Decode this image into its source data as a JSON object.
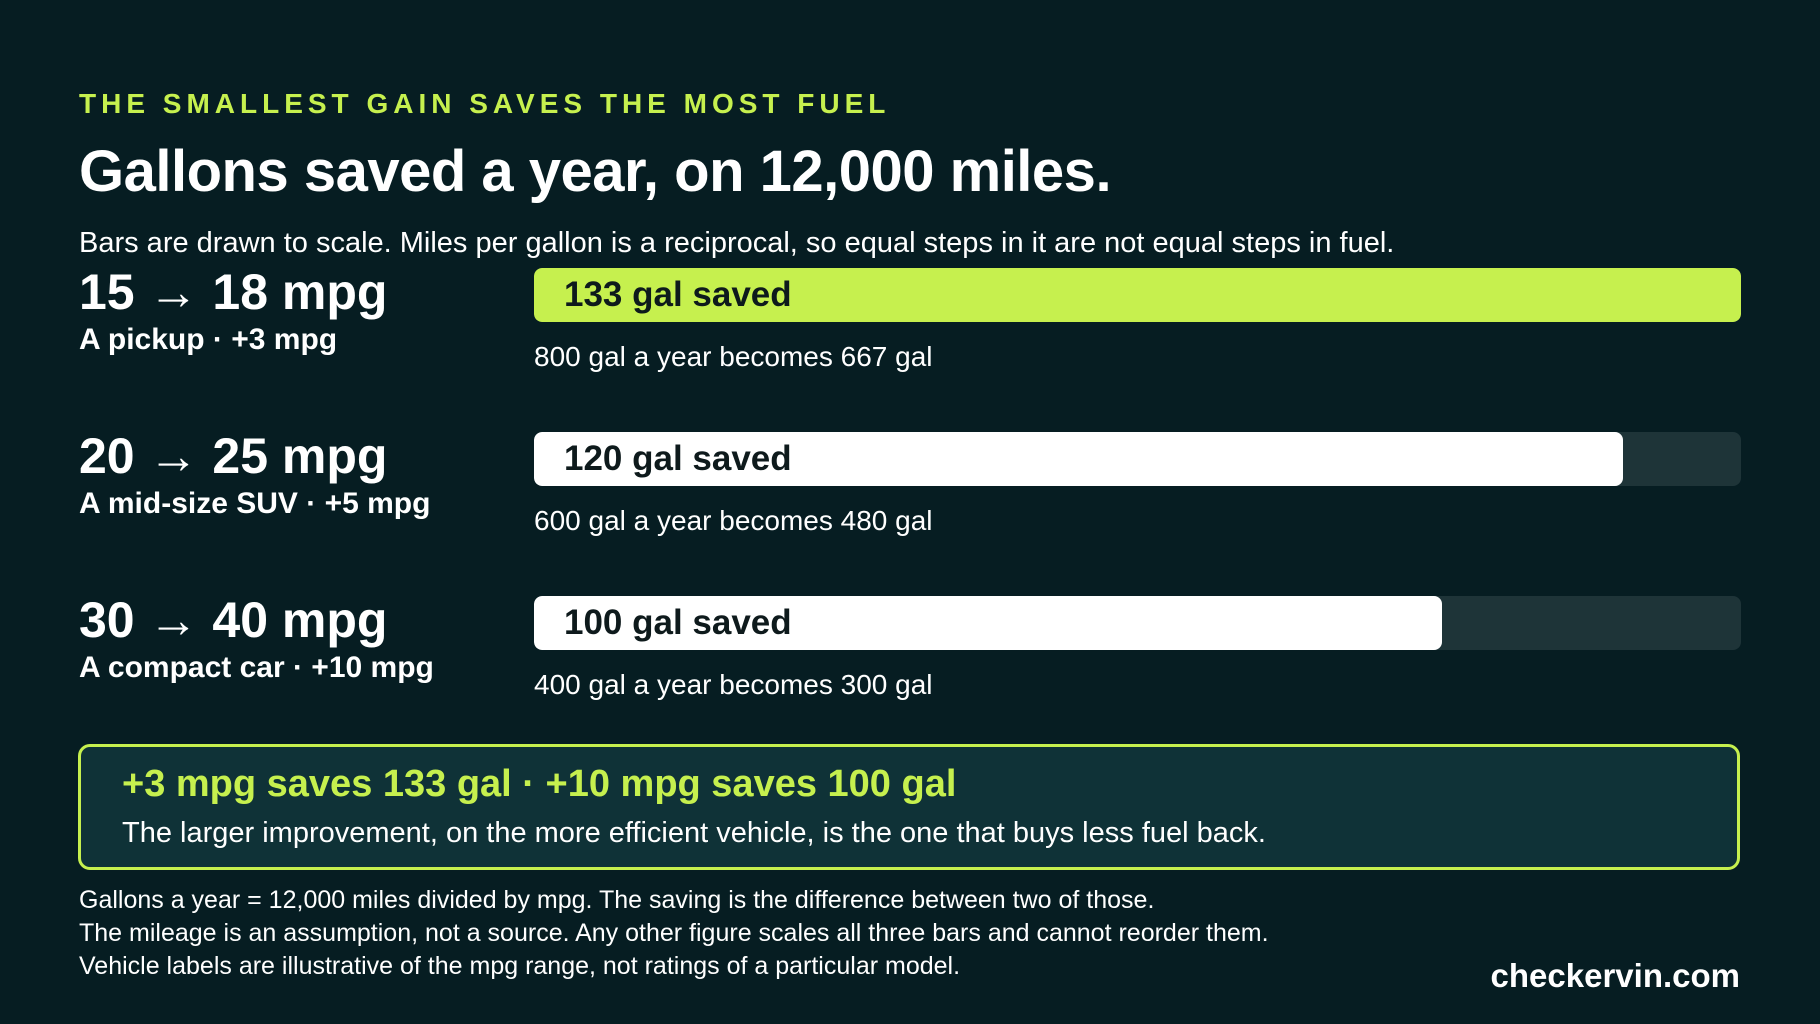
{
  "kicker": "THE SMALLEST GAIN SAVES THE MOST FUEL",
  "title": "Gallons saved a year, on 12,000 miles.",
  "subtitle": "Bars are drawn to scale. Miles per gallon is a reciprocal, so equal steps in it are not equal steps in fuel.",
  "colors": {
    "background": "#061d22",
    "accent": "#c6f04e",
    "bar_default": "#ffffff",
    "track": "#1e3438",
    "callout_bg": "#0f3237"
  },
  "chart_data": {
    "type": "bar",
    "orientation": "horizontal",
    "value_unit": "gal",
    "xlim": [
      0,
      133
    ],
    "categories": [
      "15 → 18 mpg",
      "20 → 25 mpg",
      "30 → 40 mpg"
    ],
    "values": [
      133,
      120,
      100
    ],
    "rows": [
      {
        "head": "15 → 18 mpg",
        "sub": "A pickup · +3 mpg",
        "value": 133,
        "bar_label": "133 gal saved",
        "note": "800 gal a year becomes 667 gal",
        "highlight": true
      },
      {
        "head": "20 → 25 mpg",
        "sub": "A mid-size SUV · +5 mpg",
        "value": 120,
        "bar_label": "120 gal saved",
        "note": "600 gal a year becomes 480 gal",
        "highlight": false
      },
      {
        "head": "30 → 40 mpg",
        "sub": "A compact car · +10 mpg",
        "value": 100,
        "bar_label": "100 gal saved",
        "note": "400 gal a year becomes 300 gal",
        "highlight": false
      }
    ]
  },
  "callout": {
    "title": "+3 mpg saves 133 gal · +10 mpg saves 100 gal",
    "body": "The larger improvement, on the more efficient vehicle, is the one that buys less fuel back."
  },
  "footnotes": [
    "Gallons a year = 12,000 miles divided by mpg. The saving is the difference between two of those.",
    "The mileage is an assumption, not a source. Any other figure scales all three bars and cannot reorder them.",
    "Vehicle labels are illustrative of the mpg range, not ratings of a particular model."
  ],
  "brand": "checkervin.com"
}
